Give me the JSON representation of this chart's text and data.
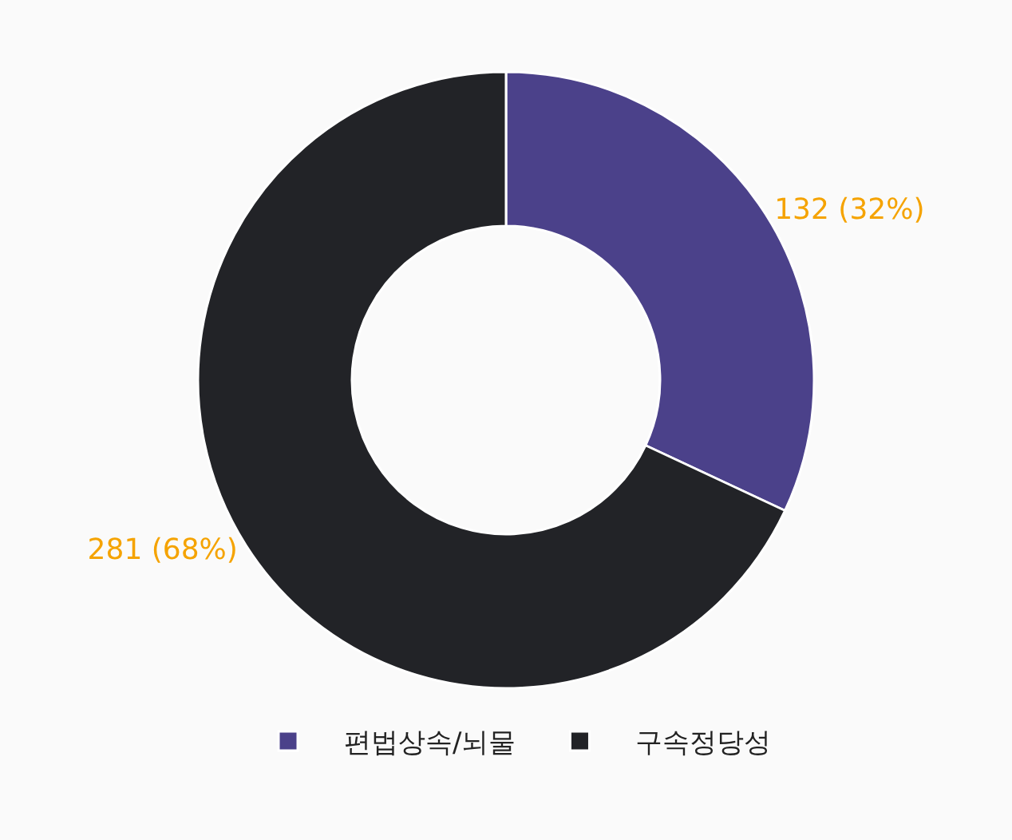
{
  "chart_data": {
    "type": "donut",
    "categories": [
      "편법상속/뇌물",
      "구속정당성"
    ],
    "values": [
      132,
      281
    ],
    "colors": [
      "#4b418a",
      "#222327"
    ],
    "value_labels": [
      "132 (32%)",
      "281 (68%)"
    ],
    "legend": "bottom"
  }
}
